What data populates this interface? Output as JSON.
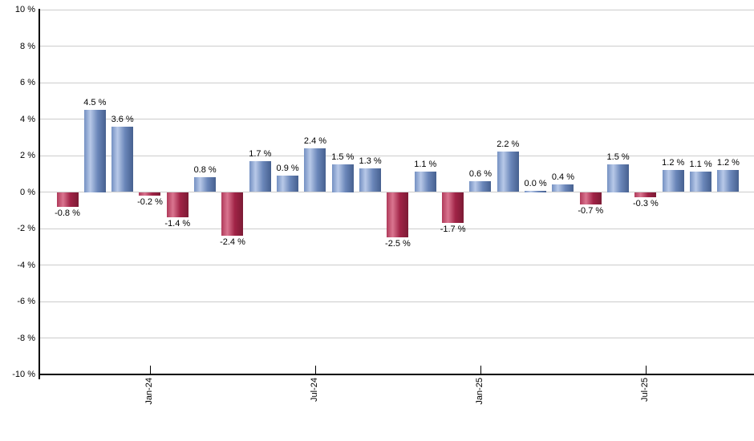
{
  "chart_data": {
    "type": "bar",
    "title": "",
    "unit": "%",
    "grid": true,
    "legend_position": "none",
    "ylim": [
      -10,
      10
    ],
    "ytick_step": 2,
    "yticks": [
      {
        "value": 10,
        "label": "10 %"
      },
      {
        "value": 8,
        "label": "8 %"
      },
      {
        "value": 6,
        "label": "6 %"
      },
      {
        "value": 4,
        "label": "4 %"
      },
      {
        "value": 2,
        "label": "2 %"
      },
      {
        "value": 0,
        "label": "0 %"
      },
      {
        "value": -2,
        "label": "-2 %"
      },
      {
        "value": -4,
        "label": "-4 %"
      },
      {
        "value": -6,
        "label": "-6 %"
      },
      {
        "value": -8,
        "label": "-8 %"
      },
      {
        "value": -10,
        "label": "-10 %"
      }
    ],
    "xticks": [
      {
        "bar_index": 3,
        "label": "Jan-24"
      },
      {
        "bar_index": 9,
        "label": "Jul-24"
      },
      {
        "bar_index": 15,
        "label": "Jan-25"
      },
      {
        "bar_index": 21,
        "label": "Jul-25"
      }
    ],
    "bars": [
      {
        "value": -0.8,
        "label": "-0.8 %"
      },
      {
        "value": 4.5,
        "label": "4.5 %"
      },
      {
        "value": 3.6,
        "label": "3.6 %"
      },
      {
        "value": -0.2,
        "label": "-0.2 %"
      },
      {
        "value": -1.4,
        "label": "-1.4 %"
      },
      {
        "value": 0.8,
        "label": "0.8 %"
      },
      {
        "value": -2.4,
        "label": "-2.4 %"
      },
      {
        "value": 1.7,
        "label": "1.7 %"
      },
      {
        "value": 0.9,
        "label": "0.9 %"
      },
      {
        "value": 2.4,
        "label": "2.4 %"
      },
      {
        "value": 1.5,
        "label": "1.5 %"
      },
      {
        "value": 1.3,
        "label": "1.3 %"
      },
      {
        "value": -2.5,
        "label": "-2.5 %"
      },
      {
        "value": 1.1,
        "label": "1.1 %"
      },
      {
        "value": -1.7,
        "label": "-1.7 %"
      },
      {
        "value": 0.6,
        "label": "0.6 %"
      },
      {
        "value": 2.2,
        "label": "2.2 %"
      },
      {
        "value": 0.0,
        "label": "0.0 %"
      },
      {
        "value": 0.4,
        "label": "0.4 %"
      },
      {
        "value": -0.7,
        "label": "-0.7 %"
      },
      {
        "value": 1.5,
        "label": "1.5 %"
      },
      {
        "value": -0.3,
        "label": "-0.3 %"
      },
      {
        "value": 1.2,
        "label": "1.2 %"
      },
      {
        "value": 1.1,
        "label": "1.1 %"
      },
      {
        "value": 1.2,
        "label": "1.2 %"
      }
    ]
  },
  "colors": {
    "positive_bar_gradient": [
      "#7490c2",
      "#b8c9e8",
      "#6b87ba",
      "#46608f"
    ],
    "negative_bar_gradient": [
      "#b03a5a",
      "#da7590",
      "#a02346",
      "#7c1b35"
    ],
    "gridline": "#cccccc",
    "axis": "#000000",
    "text": "#000000",
    "background": "#ffffff"
  }
}
